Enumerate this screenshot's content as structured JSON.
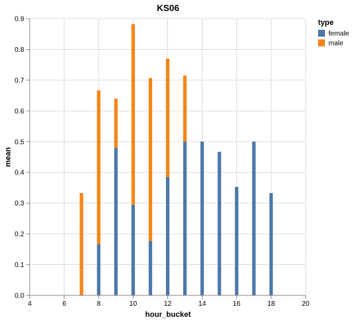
{
  "chart_data": {
    "type": "bar",
    "stacked": true,
    "title": "KS06",
    "xlabel": "hour_bucket",
    "ylabel": "mean",
    "xlim": [
      4,
      20
    ],
    "ylim": [
      0,
      0.9
    ],
    "x_ticks": [
      4,
      6,
      8,
      10,
      12,
      14,
      16,
      18,
      20
    ],
    "y_ticks": [
      0.0,
      0.1,
      0.2,
      0.3,
      0.4,
      0.5,
      0.6,
      0.7,
      0.8,
      0.9
    ],
    "grid": true,
    "legend": {
      "title": "type",
      "placement": "top-right"
    },
    "x": [
      7,
      8,
      9,
      10,
      11,
      12,
      13,
      14,
      15,
      16,
      17,
      18
    ],
    "series": [
      {
        "name": "female",
        "color": "#4c78a8",
        "values": [
          0,
          0.167,
          0.48,
          0.295,
          0.177,
          0.385,
          0.5,
          0.5,
          0.467,
          0.353,
          0.5,
          0.333
        ]
      },
      {
        "name": "male",
        "color": "#f58518",
        "values": [
          0.333,
          0.5,
          0.16,
          0.587,
          0.53,
          0.385,
          0.215,
          0,
          0,
          0,
          0,
          0
        ]
      }
    ]
  }
}
